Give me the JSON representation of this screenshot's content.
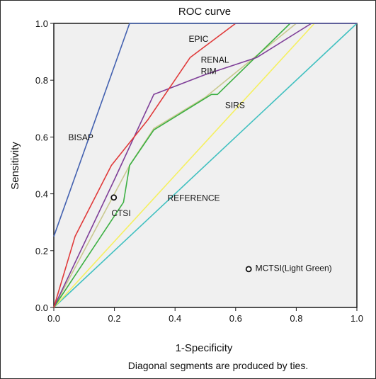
{
  "chart_data": {
    "type": "line",
    "title": "ROC curve",
    "xlabel": "1-Specificity",
    "ylabel": "Sensitivity",
    "footnote": "Diagonal segments are produced by ties.",
    "xlim": [
      0,
      1
    ],
    "ylim": [
      0,
      1
    ],
    "xticks": [
      "0.0",
      "0.2",
      "0.4",
      "0.6",
      "0.8",
      "1.0"
    ],
    "yticks": [
      "0.0",
      "0.2",
      "0.4",
      "0.6",
      "0.8",
      "1.0"
    ],
    "grid": false,
    "plot_background": "#f0f0f0",
    "series": [
      {
        "name": "REFERENCE",
        "color": "#40c0c0",
        "points": [
          [
            0,
            0
          ],
          [
            1,
            1
          ]
        ]
      },
      {
        "name": "MCTSI(Light Green)",
        "color": "#f5f060",
        "points": [
          [
            0,
            0
          ],
          [
            0.86,
            1
          ],
          [
            1,
            1
          ]
        ]
      },
      {
        "name": "CTSI",
        "color": "#c9c98f",
        "points": [
          [
            0,
            0
          ],
          [
            0.2,
            0.4
          ],
          [
            0.25,
            0.5
          ],
          [
            0.33,
            0.63
          ],
          [
            0.5,
            0.74
          ],
          [
            0.8,
            1
          ],
          [
            1,
            1
          ]
        ]
      },
      {
        "name": "SIRS",
        "color": "#3cb043",
        "points": [
          [
            0,
            0
          ],
          [
            0.23,
            0.37
          ],
          [
            0.25,
            0.5
          ],
          [
            0.33,
            0.625
          ],
          [
            0.52,
            0.75
          ],
          [
            0.54,
            0.75
          ],
          [
            0.78,
            1
          ],
          [
            1,
            1
          ]
        ]
      },
      {
        "name": "RENAL RIM",
        "color": "#7f3f98",
        "points": [
          [
            0,
            0
          ],
          [
            0.2,
            0.45
          ],
          [
            0.33,
            0.75
          ],
          [
            0.5,
            0.82
          ],
          [
            0.67,
            0.88
          ],
          [
            0.85,
            1
          ],
          [
            1,
            1
          ]
        ]
      },
      {
        "name": "EPIC",
        "color": "#e03a3a",
        "points": [
          [
            0,
            0
          ],
          [
            0.07,
            0.25
          ],
          [
            0.19,
            0.5
          ],
          [
            0.31,
            0.66
          ],
          [
            0.45,
            0.88
          ],
          [
            0.6,
            1
          ],
          [
            1,
            1
          ]
        ]
      },
      {
        "name": "BISAP",
        "color": "#4361b0",
        "points": [
          [
            0,
            0.25
          ],
          [
            0.25,
            1
          ],
          [
            1,
            1
          ]
        ]
      }
    ],
    "annotations": [
      {
        "text": "EPIC",
        "x": 0.445,
        "y": 0.935
      },
      {
        "text": "RENAL",
        "x": 0.485,
        "y": 0.862
      },
      {
        "text": "RIM",
        "x": 0.485,
        "y": 0.822
      },
      {
        "text": "SIRS",
        "x": 0.565,
        "y": 0.702
      },
      {
        "text": "BISAP",
        "x": 0.048,
        "y": 0.588
      },
      {
        "text": "CTSI",
        "x": 0.19,
        "y": 0.322
      },
      {
        "text": "REFERENCE",
        "x": 0.375,
        "y": 0.375
      },
      {
        "text": "MCTSI(Light Green)",
        "x": 0.665,
        "y": 0.128
      }
    ],
    "markers": [
      {
        "x": 0.198,
        "y": 0.387,
        "name": "ctsi-marker"
      },
      {
        "x": 0.643,
        "y": 0.135,
        "name": "mctsi-marker"
      }
    ]
  }
}
